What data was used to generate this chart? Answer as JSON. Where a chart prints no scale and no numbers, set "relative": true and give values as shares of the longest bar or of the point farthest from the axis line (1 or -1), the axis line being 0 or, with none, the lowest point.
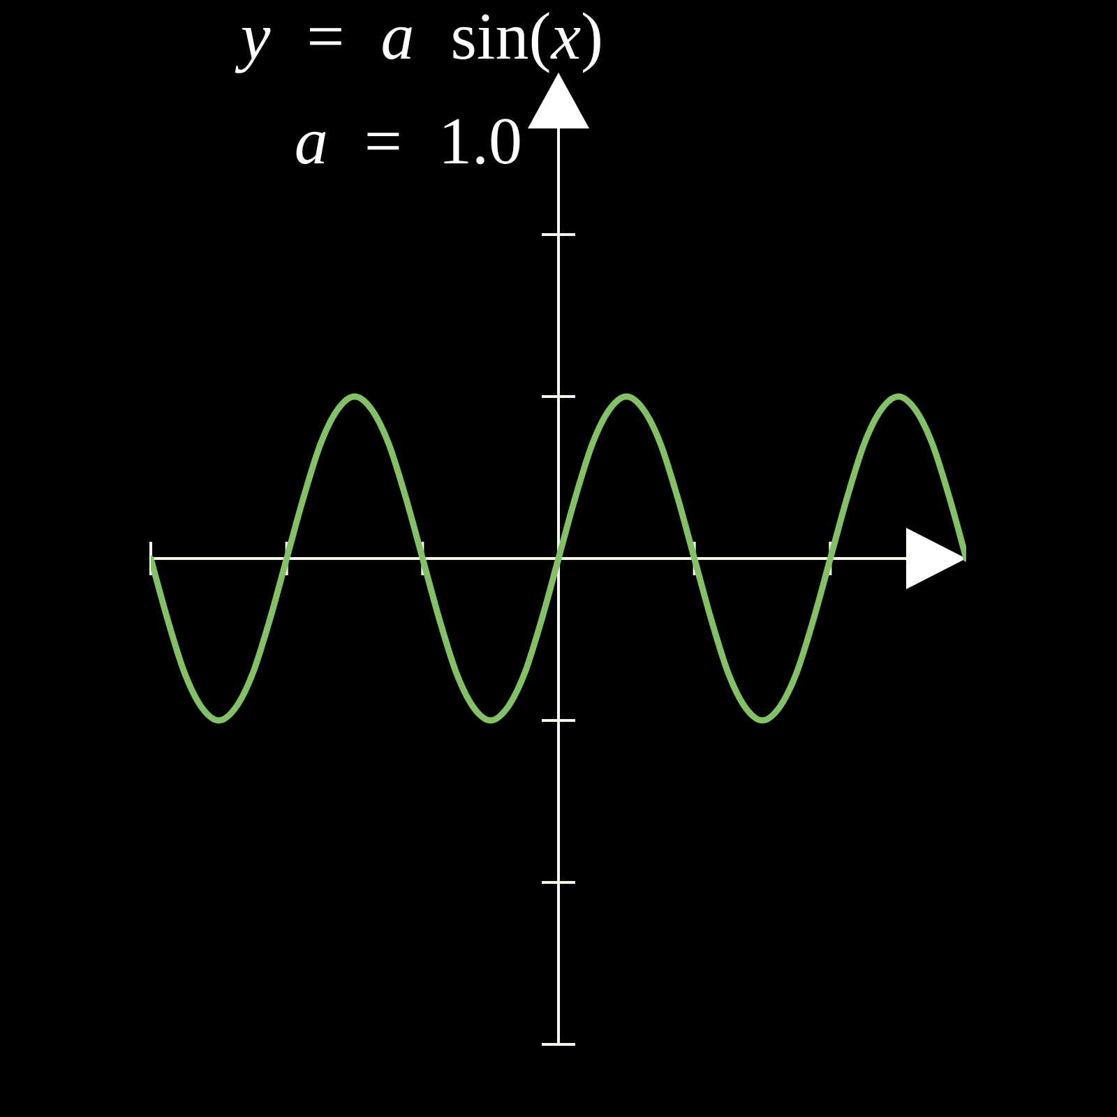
{
  "chart_data": {
    "type": "line",
    "title": "y = a sin(x)",
    "subtitle": "a = 1.0",
    "relative": true,
    "categories": [
      null,
      null,
      null,
      null,
      null,
      null,
      null,
      null,
      null,
      null,
      null,
      null,
      null,
      null,
      null,
      null,
      null,
      null,
      null,
      null,
      null,
      null,
      null,
      null,
      null,
      null,
      null,
      null,
      null,
      null,
      null,
      null,
      null,
      null,
      null,
      null,
      null,
      null,
      null,
      null,
      null,
      null,
      null,
      null,
      null,
      null,
      null,
      null,
      null
    ],
    "values": [
      0,
      -0.38,
      -0.71,
      -0.92,
      -1,
      -0.92,
      -0.71,
      -0.38,
      0,
      0.38,
      0.71,
      0.92,
      1,
      0.92,
      0.71,
      0.38,
      0,
      -0.38,
      -0.71,
      -0.92,
      -1,
      -0.92,
      -0.71,
      -0.38,
      0,
      0.38,
      0.71,
      0.92,
      1,
      0.92,
      0.71,
      0.38,
      0,
      -0.38,
      -0.71,
      -0.92,
      -1,
      -0.92,
      -0.71,
      -0.38,
      0,
      0.38,
      0.71,
      0.92,
      1,
      0.92,
      0.71,
      0.38,
      0
    ],
    "color": "#83c167"
  }
}
